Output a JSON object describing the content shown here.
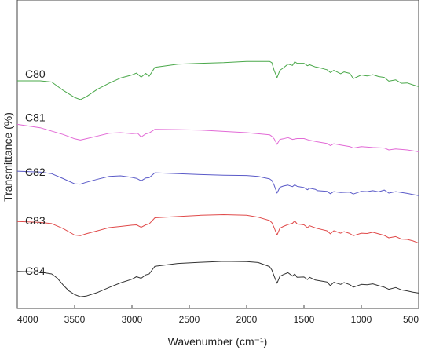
{
  "chart_data": {
    "type": "line",
    "title": "",
    "xlabel": "Wavenumber (cm⁻¹)",
    "ylabel": "Transmittance (%)",
    "xlim": [
      4000,
      500
    ],
    "x_reversed": true,
    "y_ticks_shown": false,
    "grid": false,
    "legend": "inline labels at left of each curve",
    "x_ticks": [
      4000,
      3500,
      3000,
      2500,
      2000,
      1500,
      1000,
      500
    ],
    "x_tick_labels": [
      "4000",
      "3500",
      "3000",
      "2500",
      "2000",
      "1500",
      "1000",
      "500"
    ],
    "series": [
      {
        "name": "C80",
        "color": "#4aa84a",
        "points": [
          [
            4000,
            0.738
          ],
          [
            3800,
            0.738
          ],
          [
            3700,
            0.734
          ],
          [
            3600,
            0.707
          ],
          [
            3500,
            0.684
          ],
          [
            3450,
            0.677
          ],
          [
            3400,
            0.686
          ],
          [
            3300,
            0.711
          ],
          [
            3200,
            0.73
          ],
          [
            3100,
            0.747
          ],
          [
            3000,
            0.757
          ],
          [
            2960,
            0.763
          ],
          [
            2920,
            0.75
          ],
          [
            2880,
            0.762
          ],
          [
            2850,
            0.753
          ],
          [
            2800,
            0.782
          ],
          [
            2600,
            0.792
          ],
          [
            2400,
            0.795
          ],
          [
            2200,
            0.797
          ],
          [
            2000,
            0.801
          ],
          [
            1800,
            0.801
          ],
          [
            1780,
            0.797
          ],
          [
            1760,
            0.772
          ],
          [
            1735,
            0.748
          ],
          [
            1710,
            0.772
          ],
          [
            1680,
            0.78
          ],
          [
            1640,
            0.792
          ],
          [
            1600,
            0.788
          ],
          [
            1580,
            0.8
          ],
          [
            1560,
            0.795
          ],
          [
            1500,
            0.795
          ],
          [
            1470,
            0.787
          ],
          [
            1450,
            0.79
          ],
          [
            1400,
            0.783
          ],
          [
            1380,
            0.782
          ],
          [
            1300,
            0.774
          ],
          [
            1270,
            0.765
          ],
          [
            1240,
            0.772
          ],
          [
            1180,
            0.761
          ],
          [
            1150,
            0.767
          ],
          [
            1100,
            0.762
          ],
          [
            1070,
            0.745
          ],
          [
            1000,
            0.757
          ],
          [
            950,
            0.754
          ],
          [
            900,
            0.758
          ],
          [
            850,
            0.752
          ],
          [
            800,
            0.749
          ],
          [
            760,
            0.737
          ],
          [
            700,
            0.741
          ],
          [
            650,
            0.73
          ],
          [
            600,
            0.731
          ],
          [
            550,
            0.725
          ],
          [
            500,
            0.719
          ]
        ]
      },
      {
        "name": "C81",
        "color": "#e26ad6",
        "points": [
          [
            4000,
            0.597
          ],
          [
            3800,
            0.586
          ],
          [
            3600,
            0.564
          ],
          [
            3500,
            0.55
          ],
          [
            3450,
            0.546
          ],
          [
            3400,
            0.55
          ],
          [
            3300,
            0.559
          ],
          [
            3200,
            0.568
          ],
          [
            3100,
            0.57
          ],
          [
            3000,
            0.567
          ],
          [
            2950,
            0.568
          ],
          [
            2920,
            0.556
          ],
          [
            2880,
            0.566
          ],
          [
            2850,
            0.569
          ],
          [
            2800,
            0.581
          ],
          [
            2600,
            0.58
          ],
          [
            2400,
            0.578
          ],
          [
            2200,
            0.574
          ],
          [
            2000,
            0.57
          ],
          [
            1800,
            0.563
          ],
          [
            1780,
            0.558
          ],
          [
            1760,
            0.55
          ],
          [
            1735,
            0.532
          ],
          [
            1710,
            0.548
          ],
          [
            1680,
            0.55
          ],
          [
            1640,
            0.554
          ],
          [
            1600,
            0.548
          ],
          [
            1560,
            0.551
          ],
          [
            1500,
            0.551
          ],
          [
            1450,
            0.545
          ],
          [
            1380,
            0.54
          ],
          [
            1300,
            0.535
          ],
          [
            1270,
            0.528
          ],
          [
            1240,
            0.534
          ],
          [
            1180,
            0.53
          ],
          [
            1100,
            0.525
          ],
          [
            1070,
            0.52
          ],
          [
            1000,
            0.525
          ],
          [
            900,
            0.522
          ],
          [
            800,
            0.52
          ],
          [
            760,
            0.514
          ],
          [
            700,
            0.517
          ],
          [
            600,
            0.514
          ],
          [
            500,
            0.508
          ]
        ]
      },
      {
        "name": "C82",
        "color": "#5a5ac8",
        "points": [
          [
            4000,
            0.445
          ],
          [
            3800,
            0.442
          ],
          [
            3700,
            0.437
          ],
          [
            3600,
            0.421
          ],
          [
            3500,
            0.404
          ],
          [
            3450,
            0.403
          ],
          [
            3400,
            0.409
          ],
          [
            3300,
            0.419
          ],
          [
            3200,
            0.428
          ],
          [
            3100,
            0.43
          ],
          [
            3000,
            0.425
          ],
          [
            2960,
            0.422
          ],
          [
            2920,
            0.414
          ],
          [
            2880,
            0.423
          ],
          [
            2850,
            0.424
          ],
          [
            2800,
            0.44
          ],
          [
            2600,
            0.437
          ],
          [
            2400,
            0.434
          ],
          [
            2200,
            0.432
          ],
          [
            2000,
            0.431
          ],
          [
            1900,
            0.428
          ],
          [
            1800,
            0.42
          ],
          [
            1780,
            0.415
          ],
          [
            1760,
            0.4
          ],
          [
            1735,
            0.374
          ],
          [
            1710,
            0.393
          ],
          [
            1680,
            0.397
          ],
          [
            1640,
            0.4
          ],
          [
            1600,
            0.395
          ],
          [
            1580,
            0.401
          ],
          [
            1560,
            0.396
          ],
          [
            1500,
            0.392
          ],
          [
            1470,
            0.385
          ],
          [
            1450,
            0.39
          ],
          [
            1400,
            0.386
          ],
          [
            1380,
            0.382
          ],
          [
            1300,
            0.38
          ],
          [
            1270,
            0.372
          ],
          [
            1240,
            0.379
          ],
          [
            1180,
            0.376
          ],
          [
            1100,
            0.377
          ],
          [
            1070,
            0.371
          ],
          [
            1000,
            0.38
          ],
          [
            950,
            0.379
          ],
          [
            900,
            0.382
          ],
          [
            850,
            0.378
          ],
          [
            800,
            0.384
          ],
          [
            760,
            0.374
          ],
          [
            700,
            0.379
          ],
          [
            600,
            0.373
          ],
          [
            500,
            0.366
          ]
        ]
      },
      {
        "name": "C83",
        "color": "#e04a4a",
        "points": [
          [
            4000,
            0.282
          ],
          [
            3800,
            0.279
          ],
          [
            3700,
            0.275
          ],
          [
            3600,
            0.259
          ],
          [
            3500,
            0.238
          ],
          [
            3450,
            0.236
          ],
          [
            3400,
            0.242
          ],
          [
            3300,
            0.252
          ],
          [
            3200,
            0.262
          ],
          [
            3100,
            0.266
          ],
          [
            3000,
            0.27
          ],
          [
            2960,
            0.271
          ],
          [
            2920,
            0.263
          ],
          [
            2880,
            0.271
          ],
          [
            2850,
            0.274
          ],
          [
            2800,
            0.294
          ],
          [
            2600,
            0.298
          ],
          [
            2400,
            0.302
          ],
          [
            2200,
            0.304
          ],
          [
            2000,
            0.302
          ],
          [
            1900,
            0.296
          ],
          [
            1800,
            0.285
          ],
          [
            1780,
            0.278
          ],
          [
            1760,
            0.262
          ],
          [
            1735,
            0.238
          ],
          [
            1710,
            0.26
          ],
          [
            1680,
            0.266
          ],
          [
            1640,
            0.272
          ],
          [
            1600,
            0.276
          ],
          [
            1580,
            0.284
          ],
          [
            1560,
            0.274
          ],
          [
            1500,
            0.271
          ],
          [
            1470,
            0.262
          ],
          [
            1450,
            0.268
          ],
          [
            1400,
            0.261
          ],
          [
            1380,
            0.259
          ],
          [
            1300,
            0.252
          ],
          [
            1270,
            0.242
          ],
          [
            1240,
            0.252
          ],
          [
            1180,
            0.244
          ],
          [
            1150,
            0.249
          ],
          [
            1100,
            0.243
          ],
          [
            1070,
            0.236
          ],
          [
            1000,
            0.244
          ],
          [
            950,
            0.243
          ],
          [
            900,
            0.247
          ],
          [
            850,
            0.242
          ],
          [
            800,
            0.237
          ],
          [
            760,
            0.229
          ],
          [
            700,
            0.233
          ],
          [
            650,
            0.225
          ],
          [
            600,
            0.224
          ],
          [
            550,
            0.219
          ],
          [
            500,
            0.212
          ]
        ]
      },
      {
        "name": "C84",
        "color": "#333333",
        "points": [
          [
            4000,
            0.12
          ],
          [
            3800,
            0.118
          ],
          [
            3700,
            0.112
          ],
          [
            3650,
            0.098
          ],
          [
            3600,
            0.076
          ],
          [
            3550,
            0.057
          ],
          [
            3500,
            0.045
          ],
          [
            3450,
            0.038
          ],
          [
            3400,
            0.04
          ],
          [
            3300,
            0.052
          ],
          [
            3200,
            0.068
          ],
          [
            3100,
            0.083
          ],
          [
            3000,
            0.095
          ],
          [
            2960,
            0.103
          ],
          [
            2920,
            0.098
          ],
          [
            2880,
            0.109
          ],
          [
            2850,
            0.112
          ],
          [
            2800,
            0.137
          ],
          [
            2600,
            0.146
          ],
          [
            2400,
            0.15
          ],
          [
            2200,
            0.153
          ],
          [
            2000,
            0.152
          ],
          [
            1900,
            0.149
          ],
          [
            1800,
            0.136
          ],
          [
            1780,
            0.125
          ],
          [
            1760,
            0.105
          ],
          [
            1735,
            0.082
          ],
          [
            1710,
            0.104
          ],
          [
            1680,
            0.11
          ],
          [
            1640,
            0.116
          ],
          [
            1600,
            0.105
          ],
          [
            1580,
            0.112
          ],
          [
            1560,
            0.101
          ],
          [
            1500,
            0.102
          ],
          [
            1470,
            0.094
          ],
          [
            1450,
            0.101
          ],
          [
            1400,
            0.092
          ],
          [
            1380,
            0.091
          ],
          [
            1300,
            0.086
          ],
          [
            1270,
            0.074
          ],
          [
            1240,
            0.085
          ],
          [
            1180,
            0.078
          ],
          [
            1150,
            0.084
          ],
          [
            1100,
            0.077
          ],
          [
            1070,
            0.069
          ],
          [
            1000,
            0.078
          ],
          [
            950,
            0.077
          ],
          [
            900,
            0.08
          ],
          [
            850,
            0.074
          ],
          [
            800,
            0.069
          ],
          [
            760,
            0.062
          ],
          [
            700,
            0.068
          ],
          [
            650,
            0.06
          ],
          [
            600,
            0.057
          ],
          [
            550,
            0.053
          ],
          [
            500,
            0.05
          ]
        ]
      }
    ]
  }
}
